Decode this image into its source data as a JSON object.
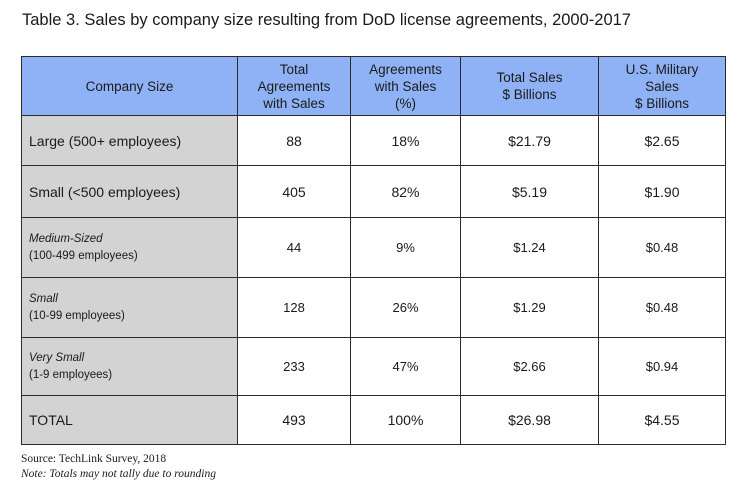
{
  "title": "Table 3. Sales by company size resulting from DoD license agreements, 2000-2017",
  "colors": {
    "header_bg": "#8fb2f6",
    "rowhead_bg": "#d3d3d3",
    "border": "#2b2b2b"
  },
  "table": {
    "headers": [
      [
        "Company Size"
      ],
      [
        "Total",
        "Agreements",
        "with Sales"
      ],
      [
        "Agreements",
        "with Sales",
        "(%)"
      ],
      [
        "Total Sales",
        "$ Billions"
      ],
      [
        "U.S. Military",
        "Sales",
        "$ Billions"
      ]
    ],
    "rows": [
      {
        "label": "Large (500+ employees)",
        "agreements": "88",
        "percent": "18%",
        "total_sales": "$21.79",
        "military_sales": "$2.65"
      },
      {
        "label": "Small (<500 employees)",
        "agreements": "405",
        "percent": "82%",
        "total_sales": "$5.19",
        "military_sales": "$1.90"
      },
      {
        "label": "Medium-Sized",
        "range": "(100-499 employees)",
        "agreements": "44",
        "percent": "9%",
        "total_sales": "$1.24",
        "military_sales": "$0.48"
      },
      {
        "label": "Small",
        "range": "(10-99 employees)",
        "agreements": "128",
        "percent": "26%",
        "total_sales": "$1.29",
        "military_sales": "$0.48"
      },
      {
        "label": "Very Small",
        "range": "(1-9 employees)",
        "agreements": "233",
        "percent": "47%",
        "total_sales": "$2.66",
        "military_sales": "$0.94"
      }
    ],
    "total": {
      "label": "TOTAL",
      "agreements": "493",
      "percent": "100%",
      "total_sales": "$26.98",
      "military_sales": "$4.55"
    }
  },
  "footer": {
    "source": "Source:  TechLink Survey, 2018",
    "note": "Note: Totals may not tally due to rounding"
  }
}
